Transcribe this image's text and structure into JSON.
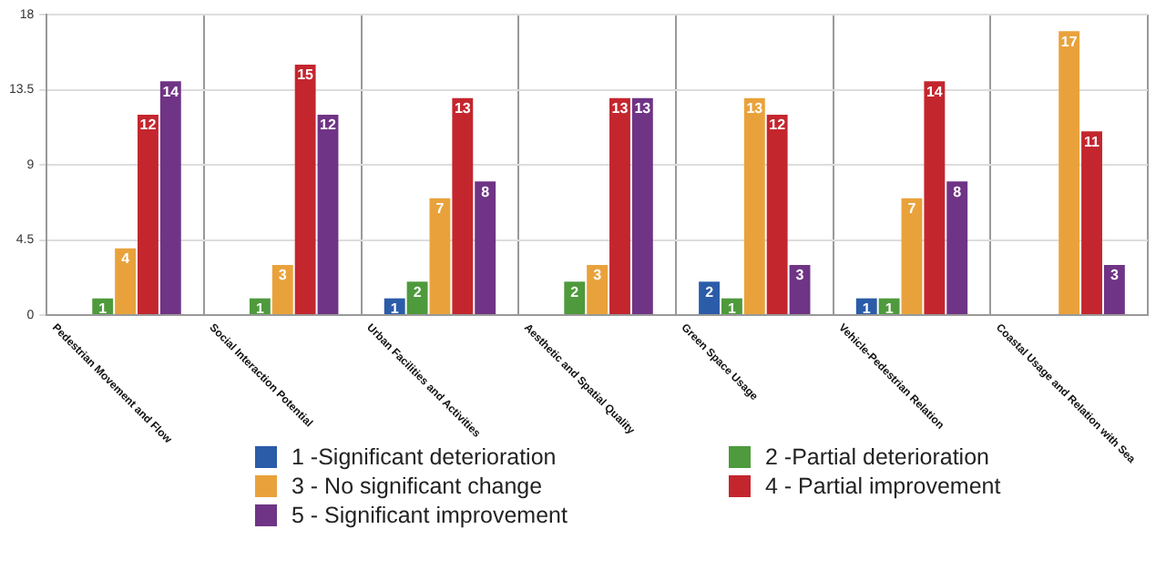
{
  "chart_data": {
    "type": "bar",
    "categories": [
      "Pedestrian Movement and Flow",
      "Social Interaction Potential",
      "Urban Facilities and Activities",
      "Aesthetic and Spatial Quality",
      "Green Space Usage",
      "Vehicle-Pedestrian Relation",
      "Coastal Usage and Relation with Sea"
    ],
    "series": [
      {
        "name": "1 -Significant deterioration",
        "color": "#2b5ca8",
        "values": [
          null,
          null,
          1,
          null,
          2,
          1,
          null
        ]
      },
      {
        "name": "2 -Partial deterioration",
        "color": "#4e9a3c",
        "values": [
          1,
          1,
          2,
          2,
          1,
          1,
          null
        ]
      },
      {
        "name": "3 - No significant change",
        "color": "#e9a23b",
        "values": [
          4,
          3,
          7,
          3,
          13,
          7,
          17
        ]
      },
      {
        "name": "4 - Partial improvement",
        "color": "#c4262e",
        "values": [
          12,
          15,
          13,
          13,
          12,
          14,
          11
        ]
      },
      {
        "name": "5 - Significant improvement",
        "color": "#6f3485",
        "values": [
          14,
          12,
          8,
          13,
          3,
          8,
          3
        ]
      }
    ],
    "ylim": [
      0,
      18
    ],
    "yticks": [
      0,
      4.5,
      9,
      13.5,
      18
    ],
    "grid": true,
    "legend": "bottom",
    "data_labels": true
  }
}
